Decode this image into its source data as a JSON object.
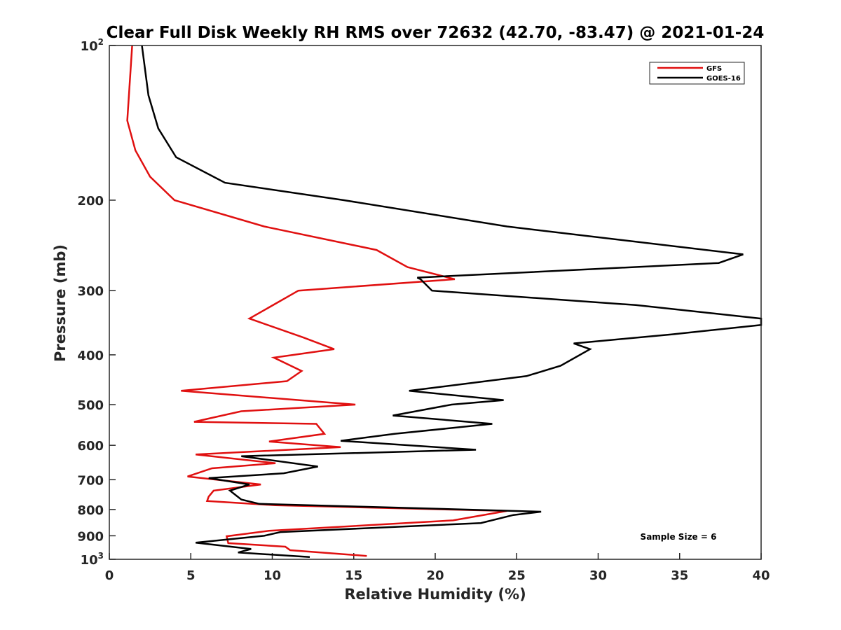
{
  "chart_data": {
    "type": "line",
    "title": "Clear Full Disk Weekly RH RMS over 72632 (42.70, -83.47) @ 2021-01-24",
    "xlabel": "Relative Humidity (%)",
    "ylabel": "Pressure (mb)",
    "xlim": [
      0,
      40
    ],
    "ylim": [
      100,
      1000
    ],
    "yscale": "log",
    "yreversed": true,
    "grid": false,
    "legend_position": "top-right",
    "xticks": [
      0,
      5,
      10,
      15,
      20,
      25,
      30,
      35,
      40
    ],
    "yticks": [
      {
        "value": 100,
        "base": "10",
        "exp": "2"
      },
      {
        "value": 200,
        "label": "200"
      },
      {
        "value": 300,
        "label": "300"
      },
      {
        "value": 400,
        "label": "400"
      },
      {
        "value": 500,
        "label": "500"
      },
      {
        "value": 600,
        "label": "600"
      },
      {
        "value": 700,
        "label": "700"
      },
      {
        "value": 800,
        "label": "800"
      },
      {
        "value": 900,
        "label": "900"
      },
      {
        "value": 1000,
        "base": "10",
        "exp": "3"
      }
    ],
    "series": [
      {
        "name": "GFS",
        "color": "#e01010",
        "x": [
          1.4,
          1.1,
          1.6,
          2.5,
          4.0,
          9.5,
          16.4,
          18.3,
          21.2,
          11.6,
          8.6,
          11.9,
          13.8,
          10.1,
          11.8,
          10.9,
          4.4,
          15.1,
          8.1,
          5.2,
          12.7,
          13.2,
          9.8,
          14.2,
          5.3,
          10.2,
          6.3,
          4.8,
          9.3,
          6.4,
          6.1,
          6.0,
          10.2,
          24.4,
          21.1,
          9.8,
          7.2,
          7.3,
          10.8,
          11.1,
          15.8
        ],
        "y": [
          100,
          140,
          160,
          180,
          200,
          225,
          250,
          270,
          285,
          300,
          340,
          370,
          390,
          405,
          430,
          450,
          470,
          500,
          515,
          540,
          545,
          570,
          590,
          605,
          625,
          650,
          665,
          690,
          715,
          735,
          755,
          770,
          785,
          805,
          840,
          880,
          902,
          930,
          945,
          960,
          985
        ]
      },
      {
        "name": "GOES-16",
        "color": "#000000",
        "x": [
          2.0,
          2.4,
          3.0,
          4.1,
          7.1,
          14.4,
          24.4,
          38.9,
          37.4,
          18.9,
          19.1,
          19.8,
          32.3,
          40.0,
          40.0,
          34.5,
          28.5,
          29.5,
          27.7,
          25.6,
          18.4,
          24.2,
          21.0,
          17.4,
          23.5,
          17.5,
          14.2,
          22.5,
          8.1,
          12.8,
          10.7,
          6.1,
          8.6,
          7.4,
          8.1,
          9.2,
          15.6,
          26.5,
          24.8,
          22.8,
          10.5,
          9.5,
          5.3,
          8.7,
          7.9,
          12.3
        ],
        "y": [
          100,
          125,
          145,
          165,
          185,
          200,
          225,
          255,
          265,
          283,
          285,
          300,
          320,
          340,
          350,
          365,
          380,
          390,
          420,
          440,
          470,
          490,
          500,
          525,
          545,
          570,
          588,
          612,
          630,
          660,
          680,
          695,
          715,
          735,
          765,
          780,
          790,
          808,
          820,
          850,
          885,
          900,
          928,
          955,
          970,
          990
        ]
      }
    ],
    "annotation": "Sample Size = 6"
  }
}
